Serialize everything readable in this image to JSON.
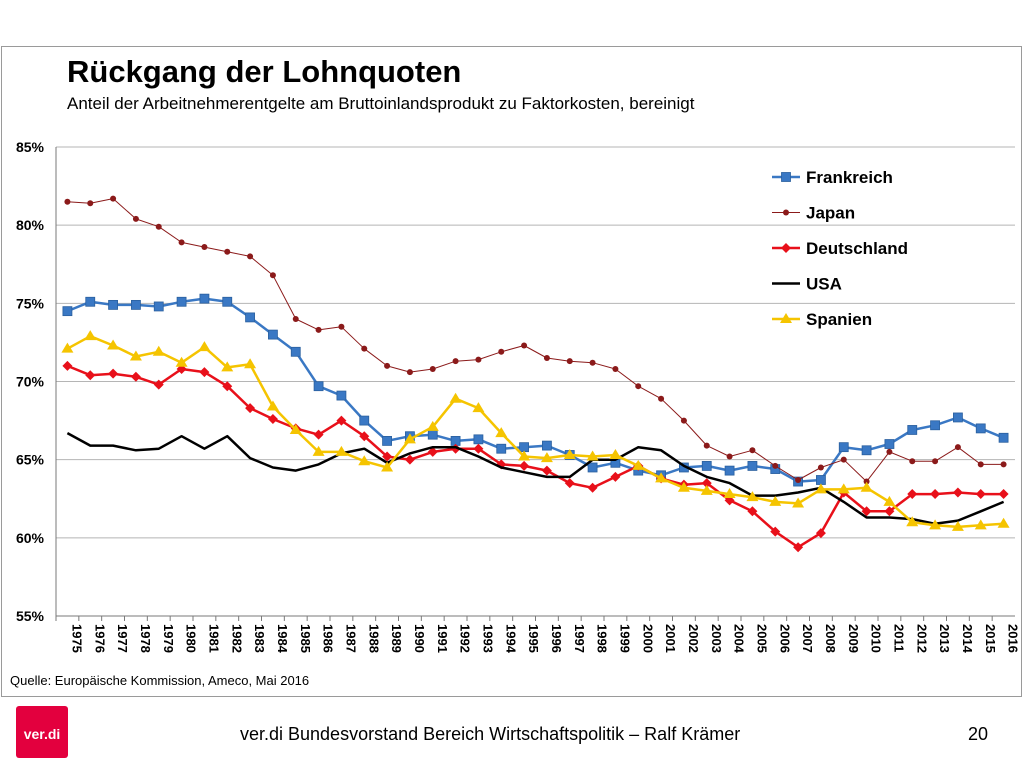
{
  "slide": {
    "title": "Rückgang der Lohnquoten",
    "subtitle": "Anteil der Arbeitnehmerentgelte am Bruttoinlandsprodukt zu Faktorkosten, bereinigt",
    "source": "Quelle: Europäische Kommission, Ameco, Mai 2016",
    "footer": "ver.di Bundesvorstand Bereich Wirtschaftspolitik – Ralf Krämer",
    "page_number": "20",
    "logo_text": "ver.di",
    "logo_color": "#e3003e"
  },
  "chart_data": {
    "type": "line",
    "title": "",
    "xlabel": "",
    "ylabel": "",
    "ylim": [
      55,
      85
    ],
    "yticks": [
      55,
      60,
      65,
      70,
      75,
      80,
      85
    ],
    "ytick_labels": [
      "55%",
      "60%",
      "65%",
      "70%",
      "75%",
      "80%",
      "85%"
    ],
    "grid": "horizontal",
    "legend_position": "top-right",
    "categories": [
      "1975",
      "1976",
      "1977",
      "1978",
      "1979",
      "1980",
      "1981",
      "1982",
      "1983",
      "1984",
      "1985",
      "1986",
      "1987",
      "1988",
      "1989",
      "1990",
      "1991",
      "1992",
      "1993",
      "1994",
      "1995",
      "1996",
      "1997",
      "1998",
      "1999",
      "2000",
      "2001",
      "2002",
      "2003",
      "2004",
      "2005",
      "2006",
      "2007",
      "2008",
      "2009",
      "2010",
      "2011",
      "2012",
      "2013",
      "2014",
      "2015",
      "2016"
    ],
    "series": [
      {
        "name": "Frankreich",
        "color": "#3a78c4",
        "marker": "square",
        "values": [
          74.5,
          75.1,
          74.9,
          74.9,
          74.8,
          75.1,
          75.3,
          75.1,
          74.1,
          73.0,
          71.9,
          69.7,
          69.1,
          67.5,
          66.2,
          66.5,
          66.6,
          66.2,
          66.3,
          65.7,
          65.8,
          65.9,
          65.3,
          64.5,
          64.8,
          64.3,
          64.0,
          64.5,
          64.6,
          64.3,
          64.6,
          64.4,
          63.6,
          63.7,
          65.8,
          65.6,
          66.0,
          66.9,
          67.2,
          67.7,
          67.0,
          66.4
        ]
      },
      {
        "name": "Japan",
        "color": "#8b1a1a",
        "marker": "circle",
        "values": [
          81.5,
          81.4,
          81.7,
          80.4,
          79.9,
          78.9,
          78.6,
          78.3,
          78.0,
          76.8,
          74.0,
          73.3,
          73.5,
          72.1,
          71.0,
          70.6,
          70.8,
          71.3,
          71.4,
          71.9,
          72.3,
          71.5,
          71.3,
          71.2,
          70.8,
          69.7,
          68.9,
          67.5,
          65.9,
          65.2,
          65.6,
          64.6,
          63.7,
          64.5,
          65.0,
          63.6,
          65.5,
          64.9,
          64.9,
          65.8,
          64.7,
          64.7
        ]
      },
      {
        "name": "Deutschland",
        "color": "#e8101a",
        "marker": "diamond",
        "values": [
          71.0,
          70.4,
          70.5,
          70.3,
          69.8,
          70.8,
          70.6,
          69.7,
          68.3,
          67.6,
          67.0,
          66.6,
          67.5,
          66.5,
          65.2,
          65.0,
          65.5,
          65.7,
          65.7,
          64.7,
          64.6,
          64.3,
          63.5,
          63.2,
          63.9,
          64.6,
          63.8,
          63.4,
          63.5,
          62.4,
          61.7,
          60.4,
          59.4,
          60.3,
          62.9,
          61.7,
          61.7,
          62.8,
          62.8,
          62.9,
          62.8,
          62.8
        ]
      },
      {
        "name": "USA",
        "color": "#000000",
        "marker": "none",
        "values": [
          66.7,
          65.9,
          65.9,
          65.6,
          65.7,
          66.5,
          65.7,
          66.5,
          65.1,
          64.5,
          64.3,
          64.7,
          65.4,
          65.7,
          64.8,
          65.4,
          65.8,
          65.8,
          65.2,
          64.5,
          64.2,
          63.9,
          63.9,
          65.0,
          65.0,
          65.8,
          65.6,
          64.6,
          63.9,
          63.5,
          62.7,
          62.7,
          62.9,
          63.2,
          62.3,
          61.3,
          61.3,
          61.2,
          60.9,
          61.1,
          61.7,
          62.3
        ]
      },
      {
        "name": "Spanien",
        "color": "#f5c400",
        "marker": "triangle",
        "values": [
          72.1,
          72.9,
          72.3,
          71.6,
          71.9,
          71.2,
          72.2,
          70.9,
          71.1,
          68.4,
          66.9,
          65.5,
          65.5,
          64.9,
          64.5,
          66.3,
          67.1,
          68.9,
          68.3,
          66.7,
          65.2,
          65.1,
          65.3,
          65.2,
          65.3,
          64.6,
          63.8,
          63.2,
          63.0,
          62.8,
          62.6,
          62.3,
          62.2,
          63.1,
          63.1,
          63.2,
          62.3,
          61.0,
          60.8,
          60.7,
          60.8,
          60.9
        ]
      }
    ]
  }
}
